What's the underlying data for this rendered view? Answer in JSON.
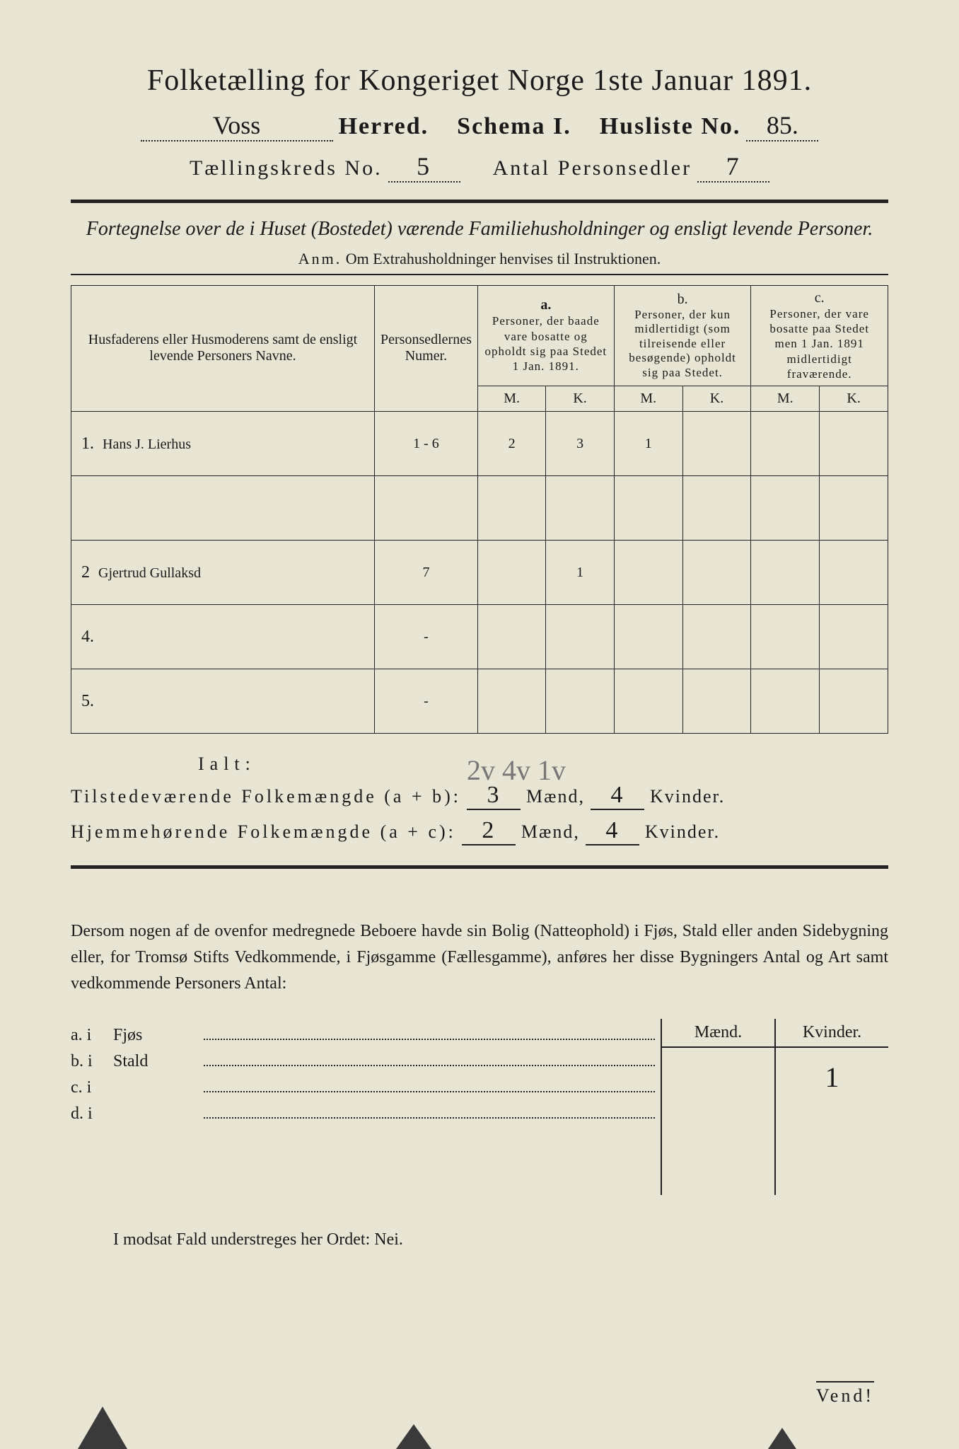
{
  "title": "Folketælling for Kongeriget Norge 1ste Januar 1891.",
  "header": {
    "herred_value": "Voss",
    "herred_label": "Herred.",
    "schema_label": "Schema I.",
    "husliste_label": "Husliste No.",
    "husliste_value": "85.",
    "kreds_label": "Tællingskreds No.",
    "kreds_value": "5",
    "antal_label": "Antal Personsedler",
    "antal_value": "7"
  },
  "subtitle": "Fortegnelse over de i Huset (Bostedet) værende Familiehusholdninger og ensligt levende Personer.",
  "anm_label": "Anm.",
  "anm_text": "Om Extrahusholdninger henvises til Instruktionen.",
  "columns": {
    "name": "Husfaderens eller Husmoderens samt de ensligt levende Personers Navne.",
    "num": "Personsedlernes Numer.",
    "a_head": "a.",
    "a_text": "Personer, der baade vare bosatte og opholdt sig paa Stedet 1 Jan. 1891.",
    "b_head": "b.",
    "b_text": "Personer, der kun midlertidigt (som tilreisende eller besøgende) opholdt sig paa Stedet.",
    "c_head": "c.",
    "c_text": "Personer, der vare bosatte paa Stedet men 1 Jan. 1891 midlertidigt fraværende.",
    "M": "M.",
    "K": "K."
  },
  "rows": [
    {
      "n": "1.",
      "name": "Hans J. Lierhus",
      "num": "1 - 6",
      "aM": "2",
      "aK": "3",
      "bM": "1",
      "bK": "",
      "cM": "",
      "cK": ""
    },
    {
      "n": "",
      "name": "",
      "num": "",
      "aM": "",
      "aK": "",
      "bM": "",
      "bK": "",
      "cM": "",
      "cK": ""
    },
    {
      "n": "2",
      "name": "Gjertrud Gullaksd",
      "num": "7",
      "aM": "",
      "aK": "1",
      "bM": "",
      "bK": "",
      "cM": "",
      "cK": ""
    },
    {
      "n": "4.",
      "name": "",
      "num": "-",
      "aM": "",
      "aK": "",
      "bM": "",
      "bK": "",
      "cM": "",
      "cK": ""
    },
    {
      "n": "5.",
      "name": "",
      "num": "-",
      "aM": "",
      "aK": "",
      "bM": "",
      "bK": "",
      "cM": "",
      "cK": ""
    }
  ],
  "ialt": "Ialt:",
  "scribble": "2v 4v 1v",
  "sums": {
    "line1_label": "Tilstedeværende Folkemængde (a + b):",
    "line1_m": "3",
    "line1_k": "4",
    "line2_label": "Hjemmehørende Folkemængde (a + c):",
    "line2_m": "2",
    "line2_k": "4",
    "maend": "Mænd,",
    "kvinder": "Kvinder."
  },
  "paragraph": "Dersom nogen af de ovenfor medregnede Beboere havde sin Bolig (Natteophold) i Fjøs, Stald eller anden Sidebygning eller, for Tromsø Stifts Vedkommende, i Fjøsgamme (Fællesgamme), anføres her disse Bygningers Antal og Art samt vedkommende Personers Antal:",
  "lower": {
    "rows": [
      {
        "lbl": "a.  i",
        "kind": "Fjøs"
      },
      {
        "lbl": "b.  i",
        "kind": "Stald"
      },
      {
        "lbl": "c.  i",
        "kind": ""
      },
      {
        "lbl": "d.  i",
        "kind": ""
      }
    ],
    "head_m": "Mænd.",
    "head_k": "Kvinder.",
    "val_m": "",
    "val_k": "1"
  },
  "nei_line": "I modsat Fald understreges her Ordet: Nei.",
  "vend": "Vend!",
  "colors": {
    "paper": "#e8e5d4",
    "ink": "#1a1a1a",
    "pencil": "#777777",
    "background": "#3a3a3a"
  }
}
